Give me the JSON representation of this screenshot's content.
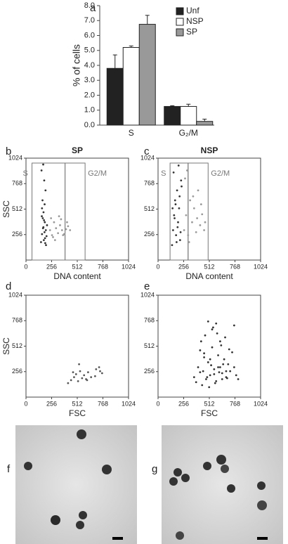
{
  "chart_data": [
    {
      "type": "bar",
      "label": "a",
      "ylabel": "% of cells",
      "categories": [
        "S",
        "G₂/M"
      ],
      "series": [
        {
          "name": "Unf",
          "color": "#222222",
          "values": [
            3.8,
            1.25
          ],
          "errors": [
            0.9,
            0.05
          ]
        },
        {
          "name": "NSP",
          "color": "#ffffff",
          "values": [
            5.2,
            1.25
          ],
          "errors": [
            0.1,
            0.15
          ]
        },
        {
          "name": "SP",
          "color": "#999999",
          "values": [
            6.75,
            0.25
          ],
          "errors": [
            0.6,
            0.15
          ]
        }
      ],
      "ylim": [
        0,
        8
      ],
      "yticks": [
        {
          "value": 0,
          "label": "0.0"
        },
        {
          "value": 1,
          "label": "1.0"
        },
        {
          "value": 2,
          "label": "2.0"
        },
        {
          "value": 3,
          "label": "3.0"
        },
        {
          "value": 4,
          "label": "4.0"
        },
        {
          "value": 5,
          "label": "5.0"
        },
        {
          "value": 6,
          "label": "6.0"
        },
        {
          "value": 7,
          "label": "7.0"
        },
        {
          "value": 8,
          "label": "8.0"
        }
      ]
    },
    {
      "type": "scatter",
      "label": "b",
      "title": "SP",
      "xlabel": "DNA content",
      "ylabel": "SSC",
      "xlim": [
        0,
        1024
      ],
      "ylim": [
        0,
        1024
      ],
      "xticks": [
        0,
        256,
        512,
        768,
        1024
      ],
      "yticks": [
        256,
        512,
        768,
        1024
      ],
      "gates": [
        {
          "label": "S",
          "x": [
            60,
            390
          ]
        },
        {
          "label": "G2/M",
          "x": [
            390,
            590
          ]
        }
      ],
      "series": [
        {
          "color": "#333333",
          "x": [
            150,
            160,
            170,
            180,
            190,
            200,
            210,
            165,
            175,
            185,
            195,
            155,
            205,
            172,
            188,
            160,
            198,
            182,
            168,
            178,
            158,
            192,
            174,
            186
          ],
          "y": [
            180,
            260,
            320,
            400,
            220,
            150,
            350,
            600,
            480,
            280,
            700,
            900,
            240,
            960,
            380,
            520,
            300,
            800,
            420,
            200,
            440,
            170,
            330,
            560
          ]
        },
        {
          "color": "#9a9a9a",
          "x": [
            240,
            260,
            280,
            300,
            320,
            340,
            360,
            380,
            400,
            420,
            250,
            290,
            330,
            370,
            410,
            440,
            270,
            350
          ],
          "y": [
            300,
            250,
            380,
            320,
            270,
            350,
            300,
            260,
            310,
            340,
            420,
            200,
            440,
            250,
            380,
            300,
            230,
            410
          ]
        }
      ]
    },
    {
      "type": "scatter",
      "label": "c",
      "title": "NSP",
      "xlabel": "DNA content",
      "xlim": [
        0,
        1024
      ],
      "ylim": [
        0,
        1024
      ],
      "xticks": [
        0,
        256,
        512,
        768,
        1024
      ],
      "yticks": [
        256,
        512,
        768,
        1024
      ],
      "gates": [
        {
          "label": "S",
          "x": [
            120,
            300
          ]
        },
        {
          "label": "G2/M",
          "x": [
            300,
            500
          ]
        }
      ],
      "series": [
        {
          "color": "#333333",
          "x": [
            140,
            150,
            160,
            170,
            180,
            190,
            200,
            210,
            220,
            230,
            155,
            175,
            195,
            215,
            165,
            185,
            205,
            225,
            145,
            235
          ],
          "y": [
            150,
            300,
            450,
            600,
            250,
            700,
            380,
            520,
            200,
            800,
            880,
            560,
            330,
            640,
            420,
            180,
            950,
            280,
            520,
            740
          ]
        },
        {
          "color": "#9a9a9a",
          "x": [
            260,
            280,
            300,
            320,
            340,
            360,
            380,
            400,
            420,
            440,
            460,
            270,
            310,
            350,
            390,
            430,
            470,
            290
          ],
          "y": [
            300,
            450,
            250,
            600,
            380,
            520,
            280,
            700,
            350,
            460,
            300,
            820,
            180,
            640,
            420,
            560,
            380,
            900
          ]
        }
      ]
    },
    {
      "type": "scatter",
      "label": "d",
      "xlabel": "FSC",
      "ylabel": "SSC",
      "xlim": [
        0,
        1024
      ],
      "ylim": [
        0,
        1024
      ],
      "xticks": [
        0,
        256,
        512,
        768,
        1024
      ],
      "yticks": [
        256,
        512,
        768,
        1024
      ],
      "series": [
        {
          "color": "#555555",
          "x": [
            420,
            450,
            480,
            500,
            520,
            540,
            560,
            580,
            600,
            620,
            650,
            700,
            730,
            760,
            470,
            530,
            610,
            690,
            740
          ],
          "y": [
            140,
            170,
            200,
            230,
            160,
            260,
            190,
            220,
            180,
            250,
            200,
            280,
            300,
            240,
            250,
            330,
            170,
            210,
            260
          ]
        }
      ]
    },
    {
      "type": "scatter",
      "label": "e",
      "xlabel": "FSC",
      "xlim": [
        0,
        1024
      ],
      "ylim": [
        0,
        1024
      ],
      "xticks": [
        0,
        256,
        512,
        768,
        1024
      ],
      "yticks": [
        256,
        512,
        768,
        1024
      ],
      "series": [
        {
          "color": "#333333",
          "x": [
            360,
            380,
            400,
            420,
            440,
            460,
            480,
            500,
            520,
            540,
            560,
            580,
            600,
            620,
            640,
            660,
            680,
            700,
            720,
            740,
            760,
            780,
            800,
            430,
            470,
            510,
            550,
            590,
            630,
            670,
            710,
            450,
            490,
            530,
            570,
            610,
            650,
            690,
            500,
            540,
            580,
            620,
            460,
            520,
            560,
            600,
            640,
            680,
            760,
            420
          ],
          "y": [
            200,
            150,
            300,
            250,
            120,
            400,
            180,
            350,
            220,
            500,
            280,
            160,
            420,
            300,
            240,
            380,
            200,
            330,
            260,
            450,
            300,
            220,
            180,
            560,
            620,
            100,
            700,
            640,
            520,
            600,
            480,
            260,
            200,
            320,
            140,
            250,
            330,
            190,
            760,
            680,
            740,
            560,
            440,
            380,
            230,
            300,
            180,
            260,
            720,
            470
          ]
        }
      ]
    }
  ],
  "image_panels": [
    {
      "label": "f"
    },
    {
      "label": "g"
    }
  ]
}
